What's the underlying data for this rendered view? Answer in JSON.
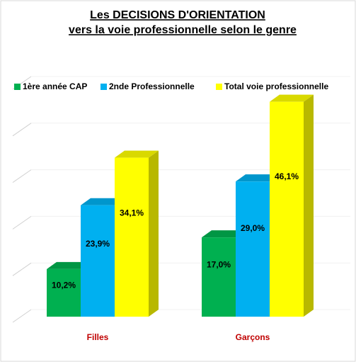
{
  "chart_data": {
    "type": "bar3d",
    "title": [
      "Les DECISIONS D'ORIENTATION",
      "vers la voie professionnelle selon le genre"
    ],
    "categories": [
      "Filles",
      "Garçons"
    ],
    "series": [
      {
        "name": "1ère année CAP",
        "color": "#00b050",
        "values": [
          10.2,
          17.0
        ],
        "value_labels": [
          "10,2%",
          "17,0%"
        ]
      },
      {
        "name": "2nde Professionnelle",
        "color": "#00b0f0",
        "values": [
          23.9,
          29.0
        ],
        "value_labels": [
          "23,9%",
          "29,0%"
        ]
      },
      {
        "name": "Total voie professionnelle",
        "color": "#ffff00",
        "values": [
          34.1,
          46.1
        ],
        "value_labels": [
          "34,1%",
          "46,1%"
        ]
      }
    ],
    "ylim": [
      0,
      50
    ],
    "yticks": [
      0,
      10,
      20,
      30,
      40,
      50
    ],
    "grid": true,
    "legend": "top"
  }
}
